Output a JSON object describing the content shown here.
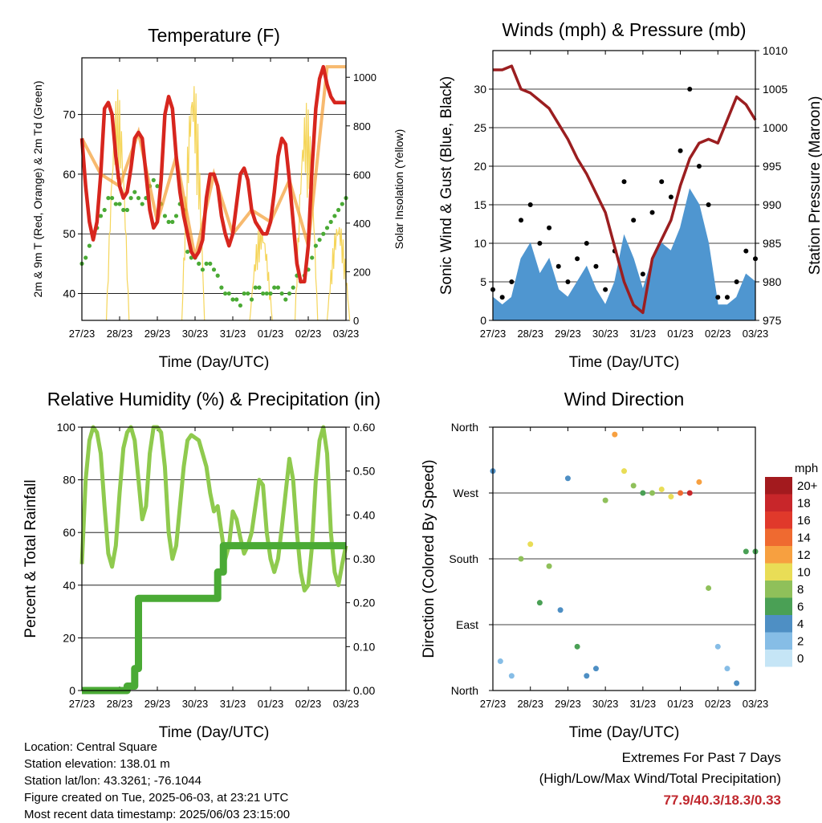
{
  "days": [
    "27/23",
    "28/23",
    "29/23",
    "30/23",
    "31/23",
    "01/23",
    "02/23",
    "03/23"
  ],
  "chart_data": [
    {
      "type": "line",
      "title": "Temperature (F)",
      "xlabel": "Time (Day/UTC)",
      "ylabel": "2m & 9m T (Red, Orange) & 2m Td (Green)",
      "y2label": "Solar Insolation (Yellow)",
      "x_ticks": [
        "27/23",
        "28/23",
        "29/23",
        "30/23",
        "31/23",
        "01/23",
        "02/23",
        "03/23"
      ],
      "ylim": [
        35.5,
        79.5
      ],
      "y_ticks": [
        40,
        50,
        60,
        70
      ],
      "y2lim": [
        0,
        1080
      ],
      "y2_ticks": [
        0,
        200,
        400,
        600,
        800,
        1000
      ],
      "grid": true,
      "series": [
        {
          "name": "2m T",
          "color": "#d7261e",
          "axis": "left",
          "x": [
            0,
            0.1,
            0.2,
            0.3,
            0.4,
            0.5,
            0.6,
            0.7,
            0.8,
            0.9,
            1,
            1.1,
            1.2,
            1.3,
            1.4,
            1.5,
            1.6,
            1.7,
            1.8,
            1.9,
            2,
            2.1,
            2.2,
            2.3,
            2.4,
            2.5,
            2.6,
            2.7,
            2.8,
            2.9,
            3,
            3.1,
            3.2,
            3.3,
            3.4,
            3.5,
            3.6,
            3.7,
            3.8,
            3.9,
            4,
            4.1,
            4.2,
            4.3,
            4.4,
            4.5,
            4.6,
            4.7,
            4.8,
            4.9,
            5,
            5.1,
            5.2,
            5.3,
            5.4,
            5.5,
            5.6,
            5.7,
            5.8,
            5.9,
            6,
            6.1,
            6.2,
            6.3,
            6.4,
            6.5,
            6.6,
            6.7,
            6.8,
            6.9,
            7
          ],
          "values": [
            66,
            58,
            52,
            49,
            52,
            60,
            71,
            72,
            70,
            63,
            58,
            56,
            57,
            61,
            66,
            67,
            66,
            60,
            54,
            51,
            52,
            59,
            70,
            73,
            71,
            63,
            57,
            53,
            50,
            47,
            46,
            47,
            49,
            56,
            60,
            60,
            58,
            53,
            50,
            48,
            50,
            55,
            60,
            61,
            59,
            54,
            52,
            51,
            50,
            50,
            52,
            57,
            63,
            66,
            65,
            59,
            52,
            45,
            42,
            42,
            48,
            61,
            71,
            76,
            78,
            75,
            73,
            72,
            72,
            72,
            72
          ]
        },
        {
          "name": "9m T",
          "color": "#f39c32",
          "axis": "left",
          "x": [
            0,
            0.5,
            1,
            1.5,
            2,
            2.5,
            3,
            3.5,
            4,
            4.5,
            5,
            5.5,
            6,
            6.5,
            7
          ],
          "values": [
            66,
            60,
            58,
            67,
            52,
            63,
            46,
            60,
            50,
            54,
            52,
            59,
            48,
            78,
            78
          ]
        },
        {
          "name": "2m Td",
          "color": "#4aaa35",
          "axis": "left",
          "x": [
            0,
            0.1,
            0.2,
            0.3,
            0.4,
            0.5,
            0.6,
            0.7,
            0.8,
            0.9,
            1,
            1.1,
            1.2,
            1.3,
            1.4,
            1.5,
            1.6,
            1.7,
            1.8,
            1.9,
            2,
            2.1,
            2.2,
            2.3,
            2.4,
            2.5,
            2.6,
            2.7,
            2.8,
            2.9,
            3,
            3.1,
            3.2,
            3.3,
            3.4,
            3.5,
            3.6,
            3.7,
            3.8,
            3.9,
            4,
            4.1,
            4.2,
            4.3,
            4.4,
            4.5,
            4.6,
            4.7,
            4.8,
            4.9,
            5,
            5.1,
            5.2,
            5.3,
            5.4,
            5.5,
            5.6,
            5.7,
            5.8,
            5.9,
            6,
            6.1,
            6.2,
            6.3,
            6.4,
            6.5,
            6.6,
            6.7,
            6.8,
            6.9,
            7
          ],
          "values": [
            45,
            46,
            48,
            50,
            51,
            53,
            54,
            56,
            56,
            55,
            55,
            54,
            54,
            56,
            57,
            56,
            55,
            56,
            58,
            59,
            58,
            55,
            53,
            52,
            52,
            53,
            55,
            54,
            47,
            46,
            46,
            45,
            44,
            45,
            45,
            44,
            43,
            41,
            40,
            40,
            39,
            39,
            38,
            40,
            40,
            39,
            41,
            41,
            40,
            40,
            40,
            41,
            41,
            40,
            39,
            40,
            41,
            43,
            42,
            43,
            44,
            46,
            48,
            49,
            50,
            51,
            52,
            53,
            54,
            55,
            56
          ]
        },
        {
          "name": "Solar",
          "color": "#f5d55a",
          "axis": "right",
          "peaks": [
            [
              0.95,
              950
            ],
            [
              2.95,
              1020
            ],
            [
              4.75,
              400
            ],
            [
              5.95,
              900
            ],
            [
              6.8,
              420
            ]
          ]
        }
      ]
    },
    {
      "type": "line",
      "title": "Winds (mph) & Pressure (mb)",
      "xlabel": "Time (Day/UTC)",
      "ylabel": "Sonic Wind & Gust (Blue, Black)",
      "y2label": "Station Pressure (Maroon)",
      "x_ticks": [
        "27/23",
        "28/23",
        "29/23",
        "30/23",
        "31/23",
        "01/23",
        "02/23",
        "03/23"
      ],
      "ylim": [
        0,
        35
      ],
      "y_ticks": [
        0,
        5,
        10,
        15,
        20,
        25,
        30
      ],
      "y2lim": [
        975,
        1010
      ],
      "y2_ticks": [
        975,
        980,
        985,
        990,
        995,
        1000,
        1005,
        1010
      ],
      "grid": true,
      "series": [
        {
          "name": "Wind",
          "color": "#4f96d0",
          "axis": "left",
          "x": [
            0,
            0.25,
            0.5,
            0.75,
            1,
            1.25,
            1.5,
            1.75,
            2,
            2.25,
            2.5,
            2.75,
            3,
            3.25,
            3.5,
            3.75,
            4,
            4.25,
            4.5,
            4.75,
            5,
            5.25,
            5.5,
            5.75,
            6,
            6.25,
            6.5,
            6.75,
            7
          ],
          "values": [
            3,
            2,
            3,
            8,
            10,
            6,
            8,
            4,
            3,
            5,
            7,
            4,
            2,
            5,
            11,
            8,
            4,
            8,
            10,
            9,
            12,
            17,
            15,
            10,
            2,
            2,
            3,
            6,
            5
          ]
        },
        {
          "name": "Gust",
          "color": "#000000",
          "axis": "left",
          "x": [
            0,
            0.25,
            0.5,
            0.75,
            1,
            1.25,
            1.5,
            1.75,
            2,
            2.25,
            2.5,
            2.75,
            3,
            3.25,
            3.5,
            3.75,
            4,
            4.25,
            4.5,
            4.75,
            5,
            5.25,
            5.5,
            5.75,
            6,
            6.25,
            6.5,
            6.75,
            7
          ],
          "values": [
            4,
            3,
            5,
            13,
            15,
            10,
            12,
            7,
            5,
            8,
            10,
            7,
            4,
            9,
            18,
            13,
            6,
            14,
            18,
            16,
            22,
            30,
            20,
            15,
            3,
            3,
            5,
            9,
            8
          ]
        },
        {
          "name": "Pressure",
          "color": "#9b1e20",
          "axis": "right",
          "x": [
            0,
            0.25,
            0.5,
            0.75,
            1,
            1.25,
            1.5,
            1.75,
            2,
            2.25,
            2.5,
            2.75,
            3,
            3.25,
            3.5,
            3.75,
            4,
            4.25,
            4.5,
            4.75,
            5,
            5.25,
            5.5,
            5.75,
            6,
            6.25,
            6.5,
            6.75,
            7
          ],
          "values": [
            1007.5,
            1007.5,
            1008,
            1005,
            1004.5,
            1003.5,
            1002.5,
            1000.5,
            998.5,
            996,
            994,
            991.5,
            989,
            984.5,
            980,
            977,
            976,
            983,
            985.5,
            988,
            992.5,
            996,
            998,
            998.5,
            998,
            1001,
            1004,
            1003,
            1001
          ]
        }
      ]
    },
    {
      "type": "line",
      "title": "Relative Humidity (%) & Precipitation (in)",
      "xlabel": "Time (Day/UTC)",
      "ylabel": "Percent & Total Rainfall",
      "x_ticks": [
        "27/23",
        "28/23",
        "29/23",
        "30/23",
        "31/23",
        "01/23",
        "02/23",
        "03/23"
      ],
      "ylim": [
        0,
        100
      ],
      "y_ticks": [
        0,
        20,
        40,
        60,
        80,
        100
      ],
      "y2lim": [
        0,
        0.6
      ],
      "y2_ticks": [
        "0.00",
        "0.10",
        "0.20",
        "0.30",
        "0.40",
        "0.50",
        "0.60"
      ],
      "grid": true,
      "series": [
        {
          "name": "RH",
          "color": "#8fca4e",
          "axis": "left",
          "x": [
            0,
            0.1,
            0.2,
            0.3,
            0.4,
            0.5,
            0.6,
            0.7,
            0.8,
            0.9,
            1,
            1.1,
            1.2,
            1.3,
            1.4,
            1.5,
            1.6,
            1.7,
            1.8,
            1.9,
            2,
            2.1,
            2.2,
            2.3,
            2.4,
            2.5,
            2.6,
            2.7,
            2.8,
            2.9,
            3,
            3.1,
            3.2,
            3.3,
            3.4,
            3.5,
            3.6,
            3.7,
            3.8,
            3.9,
            4,
            4.1,
            4.2,
            4.3,
            4.4,
            4.5,
            4.6,
            4.7,
            4.8,
            4.9,
            5,
            5.1,
            5.2,
            5.3,
            5.4,
            5.5,
            5.6,
            5.7,
            5.8,
            5.9,
            6,
            6.1,
            6.2,
            6.3,
            6.4,
            6.5,
            6.6,
            6.7,
            6.8,
            6.9,
            7
          ],
          "values": [
            48,
            80,
            95,
            100,
            98,
            90,
            70,
            52,
            47,
            55,
            75,
            92,
            98,
            100,
            95,
            80,
            65,
            70,
            90,
            100,
            100,
            98,
            85,
            60,
            50,
            55,
            70,
            85,
            95,
            97,
            96,
            95,
            90,
            85,
            75,
            68,
            70,
            60,
            50,
            55,
            68,
            65,
            58,
            52,
            55,
            60,
            70,
            80,
            78,
            60,
            50,
            45,
            50,
            62,
            75,
            88,
            80,
            60,
            45,
            38,
            40,
            55,
            80,
            95,
            100,
            90,
            60,
            45,
            40,
            48,
            55
          ]
        },
        {
          "name": "Precip",
          "color": "#4aaa35",
          "axis": "right",
          "x": [
            0,
            1.0,
            1.2,
            1.4,
            1.5,
            1.8,
            2.0,
            2.5,
            3.0,
            3.4,
            3.6,
            3.75,
            3.9,
            4.5,
            5.0,
            5.5,
            6.0,
            6.5,
            7
          ],
          "values": [
            0,
            0,
            0.01,
            0.05,
            0.21,
            0.21,
            0.21,
            0.21,
            0.21,
            0.21,
            0.27,
            0.33,
            0.33,
            0.33,
            0.33,
            0.33,
            0.33,
            0.33,
            0.33
          ]
        }
      ]
    },
    {
      "type": "scatter",
      "title": "Wind Direction",
      "xlabel": "Time (Day/UTC)",
      "ylabel": "Direction (Colored By Speed)",
      "x_ticks": [
        "27/23",
        "28/23",
        "29/23",
        "30/23",
        "31/23",
        "01/23",
        "02/23",
        "03/23"
      ],
      "y_ticks": [
        "North",
        "East",
        "South",
        "West",
        "North"
      ],
      "ylim": [
        0,
        360
      ],
      "grid": true,
      "legend": {
        "title": "mph",
        "labels": [
          "20+",
          "18",
          "16",
          "14",
          "12",
          "10",
          "8",
          "6",
          "4",
          "2",
          "0"
        ],
        "colors": [
          "#a31a1e",
          "#c8262a",
          "#e0392b",
          "#ef6a30",
          "#f7a040",
          "#e9dd56",
          "#8fc05a",
          "#4aa055",
          "#4e8fc4",
          "#86bde6",
          "#c5e5f6"
        ]
      },
      "series": [
        {
          "name": "Direction",
          "x": [
            0,
            0.2,
            0.5,
            0.75,
            1,
            1.25,
            1.5,
            1.8,
            2,
            2.25,
            2.5,
            2.75,
            3,
            3.25,
            3.5,
            3.75,
            4,
            4.25,
            4.5,
            4.75,
            5,
            5.25,
            5.5,
            5.75,
            6,
            6.25,
            6.5,
            6.75,
            7
          ],
          "values": [
            300,
            40,
            20,
            180,
            200,
            120,
            170,
            110,
            290,
            60,
            20,
            30,
            260,
            350,
            300,
            280,
            270,
            270,
            275,
            265,
            270,
            270,
            285,
            140,
            60,
            30,
            10,
            190,
            190
          ],
          "speed": [
            3,
            2,
            2,
            8,
            9,
            6,
            8,
            4,
            3,
            5,
            4,
            3,
            7,
            12,
            10,
            7,
            6,
            8,
            10,
            9,
            14,
            18,
            12,
            8,
            2,
            2,
            3,
            6,
            5
          ]
        }
      ]
    }
  ],
  "info": {
    "location": "Location: Central Square",
    "elevation": "Station elevation: 138.01 m",
    "latlon": "Station lat/lon: 43.3261; -76.1044",
    "created": "Figure created on Tue, 2025-06-03, at 23:21 UTC",
    "recent": "Most recent data timestamp: 2025/06/03 23:15:00"
  },
  "extremes": {
    "line1": "Extremes For Past 7 Days",
    "line2": "(High/Low/Max Wind/Total Precipitation)",
    "value": "77.9/40.3/18.3/0.33"
  }
}
